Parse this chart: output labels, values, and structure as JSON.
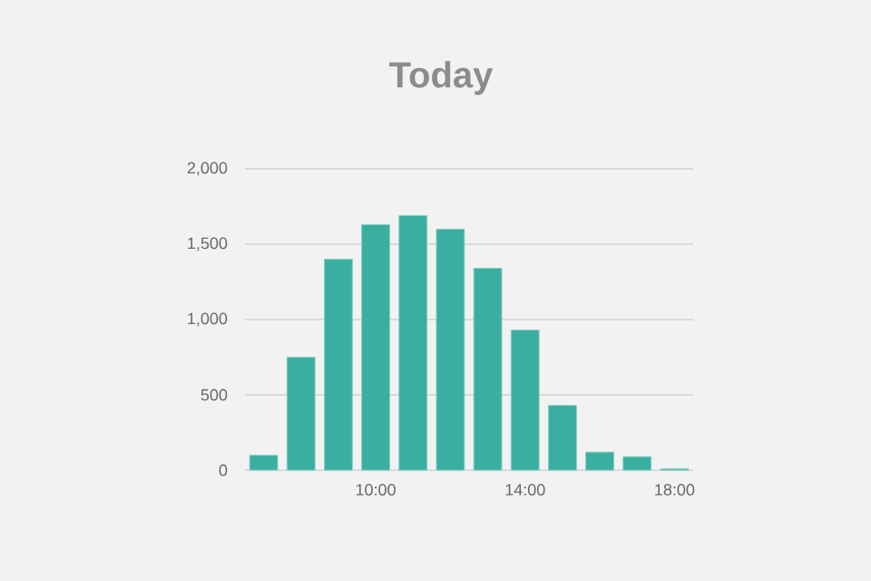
{
  "chart_data": {
    "type": "bar",
    "title": "Today",
    "x": [
      7,
      8,
      9,
      10,
      11,
      12,
      13,
      14,
      15,
      16,
      17,
      18
    ],
    "values": [
      100,
      750,
      1400,
      1630,
      1690,
      1600,
      1340,
      930,
      430,
      120,
      90,
      10
    ],
    "color": "#3aaf9f",
    "xlim": [
      6.5,
      18.5
    ],
    "xticks": [
      {
        "value": 10,
        "label": "10:00"
      },
      {
        "value": 14,
        "label": "14:00"
      },
      {
        "value": 18,
        "label": "18:00"
      }
    ],
    "ylim": [
      0,
      2000
    ],
    "yticks": [
      {
        "value": 0,
        "label": "0"
      },
      {
        "value": 500,
        "label": "500"
      },
      {
        "value": 1000,
        "label": "1,000"
      },
      {
        "value": 1500,
        "label": "1,500"
      },
      {
        "value": 2000,
        "label": "2,000"
      }
    ],
    "grid": "y"
  }
}
